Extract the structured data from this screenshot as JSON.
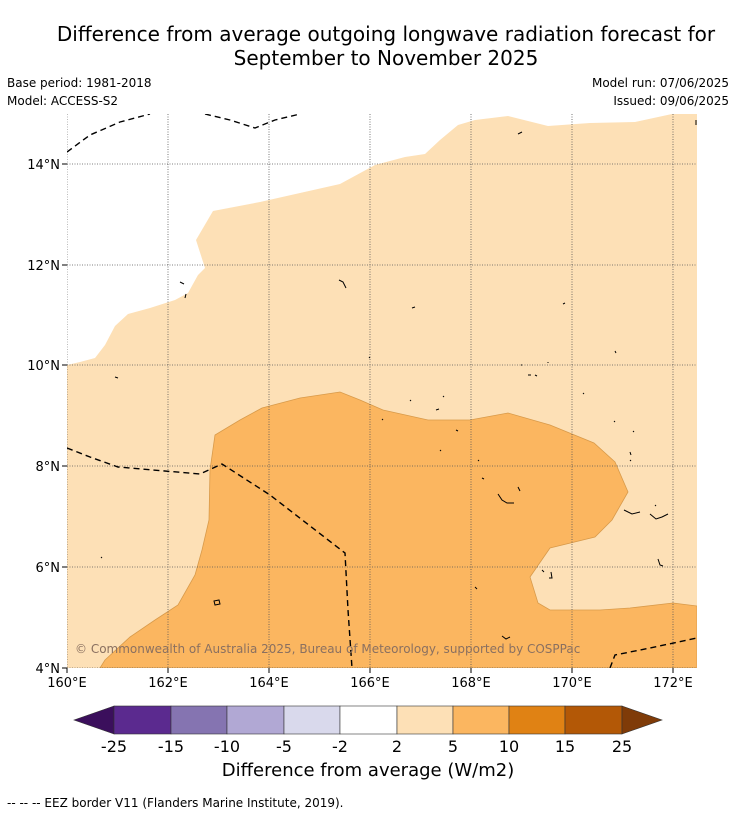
{
  "header": {
    "title_line1": "Difference from average outgoing longwave radiation forecast for",
    "title_line2": "September to November 2025",
    "base_period": "Base period: 1981-2018",
    "model": "Model: ACCESS-S2",
    "model_run": "Model run: 07/06/2025",
    "issued": "Issued: 09/06/2025"
  },
  "map": {
    "lon_range": [
      160,
      172.5
    ],
    "lat_range": [
      4,
      15
    ],
    "lon_ticks": [
      "160°E",
      "162°E",
      "164°E",
      "166°E",
      "168°E",
      "170°E",
      "172°E"
    ],
    "lat_ticks": [
      "4°N",
      "6°N",
      "8°N",
      "10°N",
      "12°N",
      "14°N"
    ],
    "copyright": "© Commonwealth of Australia 2025, Bureau of Meteorology, supported by COSPPac",
    "colors": {
      "band_2_5": "#fde0b6",
      "band_5_10": "#fbb660",
      "band_outline": "#d89a4a",
      "background": "#ffffff",
      "grid": "#555555"
    }
  },
  "colorbar": {
    "ticks": [
      "-25",
      "-15",
      "-10",
      "-5",
      "-2",
      "2",
      "5",
      "10",
      "15",
      "25"
    ],
    "colors": [
      "#3b0f5c",
      "#5b2a8f",
      "#8574b1",
      "#b1a8d4",
      "#d9d9ec",
      "#ffffff",
      "#fde0b6",
      "#fbb660",
      "#e08214",
      "#b35806",
      "#7f3b08"
    ],
    "label": "Difference from average (W/m2)"
  },
  "footnote": "--  --  -- EEZ border V11 (Flanders Marine Institute, 2019)."
}
